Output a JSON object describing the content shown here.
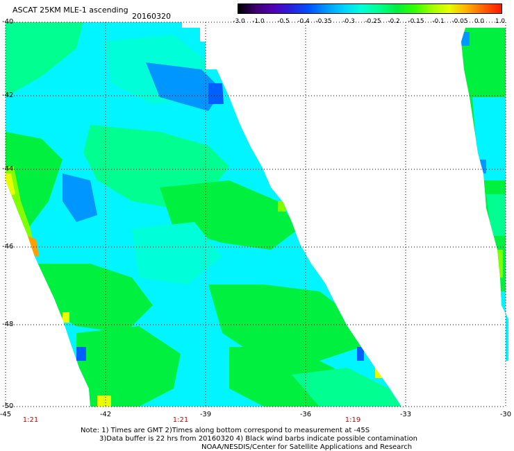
{
  "header": {
    "title": "ASCAT 25KM MLE-1 ascending",
    "date": "20160320"
  },
  "colorbar": {
    "tick_labels": [
      "-3.0",
      "-1.0",
      "-0.5",
      "-0.4",
      "-0.35",
      "-0.3",
      "-0.25",
      "-0.2",
      "-0.15",
      "-0.1",
      "-0.05",
      "0.0",
      "1.0"
    ],
    "colors": [
      "#000000",
      "#3d0070",
      "#5000b4",
      "#2a20dc",
      "#0050ff",
      "#0096ff",
      "#00d0ff",
      "#00ffd8",
      "#00ff90",
      "#00f040",
      "#30ff00",
      "#9cff00",
      "#e8ff00",
      "#ffb000",
      "#ff6000",
      "#ff1800"
    ]
  },
  "map": {
    "lat_labels": [
      "-40",
      "-42",
      "-44",
      "-46",
      "-48",
      "-50"
    ],
    "lon_labels": [
      "-45",
      "-42",
      "-39",
      "-36",
      "-33",
      "-30"
    ],
    "time_labels": [
      "1:21",
      "1:21",
      "1:19"
    ],
    "palette": {
      "cyan": "#00f5ff",
      "aqua": "#00ffd8",
      "mint": "#00ff90",
      "green": "#00f040",
      "lime": "#80ff00",
      "yellow": "#e8ff00",
      "orange": "#ffa000",
      "blue": "#0096ff",
      "deep_blue": "#0060ff"
    }
  },
  "notes": {
    "line1": "Note: 1) Times are GMT 2)Times along bottom correspond to measurement at -45S",
    "line2": "3)Data buffer is 22 hrs from 20160320 4) Black wind barbs indicate possible contamination",
    "line3": "NOAA/NESDIS/Center for Satellite Applications and Research"
  }
}
